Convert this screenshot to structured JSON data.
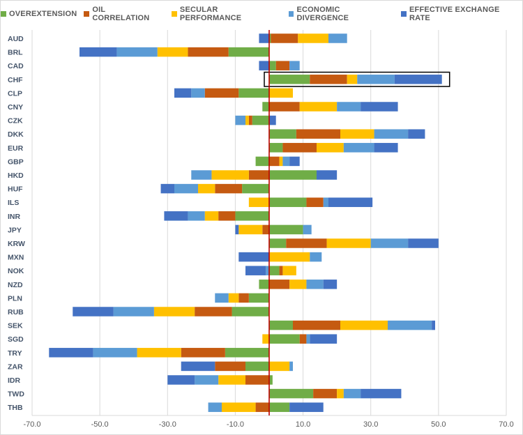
{
  "chart_data": {
    "type": "bar",
    "orientation": "horizontal",
    "stacked": true,
    "legend_position": "top",
    "grid": "vertical",
    "xlim": [
      -70,
      70
    ],
    "x_ticks": [
      "-70.0",
      "-50.0",
      "-30.0",
      "-10.0",
      "10.0",
      "30.0",
      "50.0",
      "70.0"
    ],
    "x_tick_values": [
      -70,
      -50,
      -30,
      -10,
      10,
      30,
      50,
      70
    ],
    "zero_line_color": "#c00000",
    "highlighted_category": "CHF",
    "categories": [
      "AUD",
      "BRL",
      "CAD",
      "CHF",
      "CLP",
      "CNY",
      "CZK",
      "DKK",
      "EUR",
      "GBP",
      "HKD",
      "HUF",
      "ILS",
      "INR",
      "JPY",
      "KRW",
      "MXN",
      "NOK",
      "NZD",
      "PLN",
      "RUB",
      "SEK",
      "SGD",
      "TRY",
      "ZAR",
      "IDR",
      "TWD",
      "THB"
    ],
    "series": [
      {
        "name": "OVEREXTENSION",
        "color": "#70ad47",
        "values": [
          0.5,
          -12,
          2,
          12,
          -9,
          -2,
          -5,
          8,
          4,
          -4,
          14,
          -8,
          11,
          -10,
          10,
          5,
          0,
          3,
          -3,
          -6,
          -11,
          7,
          9,
          -13,
          -7,
          1,
          13,
          6
        ]
      },
      {
        "name": "OIL CORRELATION",
        "color": "#c55a11",
        "values": [
          8,
          -12,
          4,
          11,
          -10,
          9,
          -1,
          13,
          10,
          3,
          -6,
          -8,
          5,
          -5,
          -2,
          12,
          0,
          1,
          6,
          -3,
          -11,
          14,
          2,
          -13,
          -9,
          -7,
          7,
          -4
        ]
      },
      {
        "name": "SECULAR PERFORMANCE",
        "color": "#ffc000",
        "values": [
          9,
          -9,
          0,
          3,
          7,
          11,
          -1,
          10,
          8,
          1,
          -11,
          -5,
          -6,
          -4,
          -7,
          13,
          12,
          4,
          5,
          -3,
          -12,
          14,
          -2,
          -13,
          6,
          -8,
          2,
          -10
        ]
      },
      {
        "name": "ECONOMIC DIVERGENCE",
        "color": "#5b9bd5",
        "values": [
          5.5,
          -12,
          3,
          11,
          -4,
          7,
          -3,
          10,
          9,
          2,
          -6,
          -7,
          1.5,
          -5,
          2.5,
          11,
          3.5,
          -1,
          5,
          -4,
          -12,
          13,
          1,
          -13,
          1,
          -7,
          5,
          -4
        ]
      },
      {
        "name": "EFFECTIVE EXCHANGE RATE",
        "color": "#4472c4",
        "values": [
          -3,
          -11,
          -3,
          14,
          -5,
          11,
          2,
          5,
          7,
          3,
          6,
          -4,
          13,
          -7,
          -1,
          9,
          -9,
          -6,
          4,
          0,
          -12,
          1,
          8,
          -13,
          -10,
          -8,
          12,
          10
        ]
      }
    ]
  }
}
